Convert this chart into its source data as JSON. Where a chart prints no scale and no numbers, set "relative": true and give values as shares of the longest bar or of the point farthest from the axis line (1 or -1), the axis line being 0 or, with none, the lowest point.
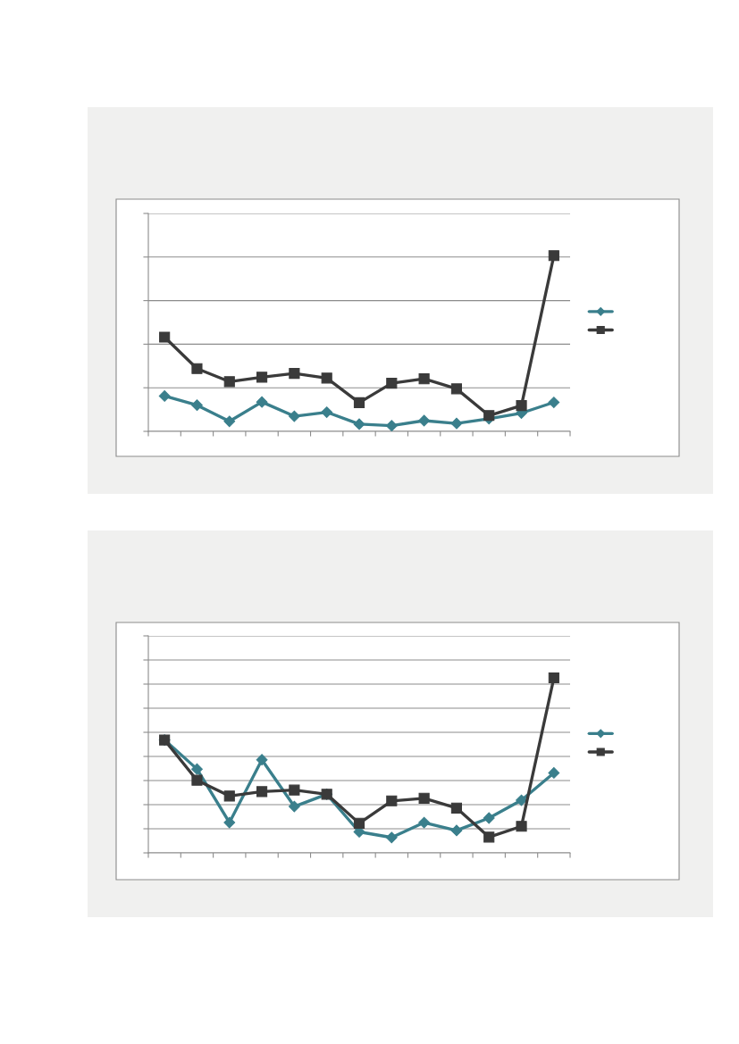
{
  "chart_data": [
    {
      "type": "line",
      "relative": true,
      "categories": [
        null,
        null,
        null,
        null,
        null,
        null,
        null,
        null,
        null,
        null,
        null,
        null,
        null
      ],
      "grid": "y",
      "series": [
        {
          "color": "#3a7f8c",
          "marker": "diamond",
          "values": [
            0.201,
            0.149,
            0.057,
            0.167,
            0.086,
            0.109,
            0.041,
            0.032,
            0.061,
            0.045,
            0.072,
            0.104,
            0.165
          ]
        },
        {
          "color": "#3a3a3a",
          "marker": "square",
          "values": [
            0.536,
            0.357,
            0.283,
            0.308,
            0.33,
            0.303,
            0.163,
            0.274,
            0.299,
            0.242,
            0.09,
            0.147,
            1
          ]
        }
      ]
    },
    {
      "type": "line",
      "relative": true,
      "categories": [
        null,
        null,
        null,
        null,
        null,
        null,
        null,
        null,
        null,
        null,
        null,
        null,
        null
      ],
      "grid": "y",
      "series": [
        {
          "color": "#3a7f8c",
          "marker": "diamond",
          "values": [
            0.645,
            0.479,
            0.173,
            0.532,
            0.265,
            0.335,
            0.12,
            0.088,
            0.173,
            0.128,
            0.199,
            0.301,
            0.457
          ]
        },
        {
          "color": "#3a3a3a",
          "marker": "square",
          "values": [
            0.645,
            0.415,
            0.325,
            0.35,
            0.359,
            0.335,
            0.169,
            0.297,
            0.312,
            0.256,
            0.09,
            0.152,
            1
          ]
        }
      ]
    }
  ]
}
